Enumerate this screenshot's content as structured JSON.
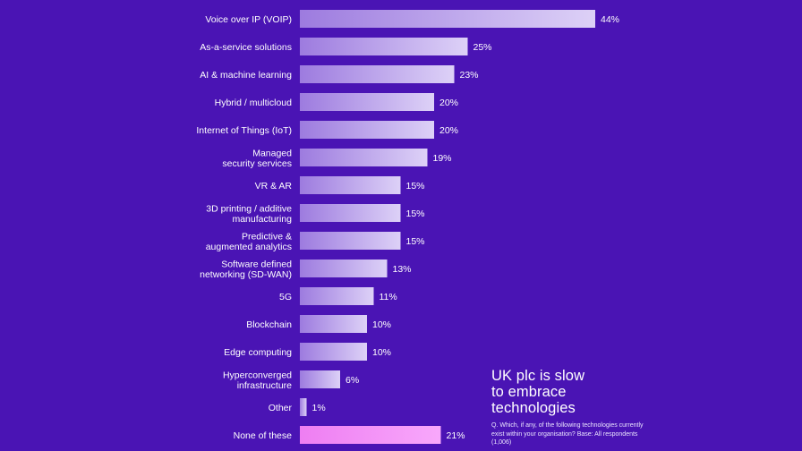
{
  "chart_data": {
    "type": "bar",
    "orientation": "horizontal",
    "categories": [
      [
        "Voice over IP (VOIP)"
      ],
      [
        "As-a-service solutions"
      ],
      [
        "AI & machine learning"
      ],
      [
        "Hybrid / multicloud"
      ],
      [
        "Internet of Things (IoT)"
      ],
      [
        "Managed",
        "security services"
      ],
      [
        "VR & AR"
      ],
      [
        "3D printing / additive",
        "manufacturing"
      ],
      [
        "Predictive &",
        "augmented analytics"
      ],
      [
        "Software defined",
        "networking (SD-WAN)"
      ],
      [
        "5G"
      ],
      [
        "Blockchain"
      ],
      [
        "Edge computing"
      ],
      [
        "Hyperconverged",
        "infrastructure"
      ],
      [
        "Other"
      ],
      [
        "None of these"
      ]
    ],
    "values": [
      44,
      25,
      23,
      20,
      20,
      19,
      15,
      15,
      15,
      13,
      11,
      10,
      10,
      6,
      1,
      21
    ],
    "value_labels": [
      "44%",
      "25%",
      "23%",
      "20%",
      "20%",
      "19%",
      "15%",
      "15%",
      "15%",
      "13%",
      "11%",
      "10%",
      "10%",
      "6%",
      "1%",
      "21%"
    ],
    "unit": "%",
    "xlim": [
      0,
      44
    ],
    "highlight_index": 15,
    "title_lines": [
      "UK plc is slow",
      "to embrace",
      "technologies"
    ],
    "note": "Q. Which, if any, of the following technologies currently exist within your organisation? Base: All respondents (1,006)"
  },
  "colors": {
    "background": "#4a14b4",
    "bar_start": "#9d7bdf",
    "bar_end": "#ddd1f7",
    "highlight_start": "#ee7ef2",
    "highlight_end": "#f8a8fb",
    "text": "#ffffff"
  }
}
